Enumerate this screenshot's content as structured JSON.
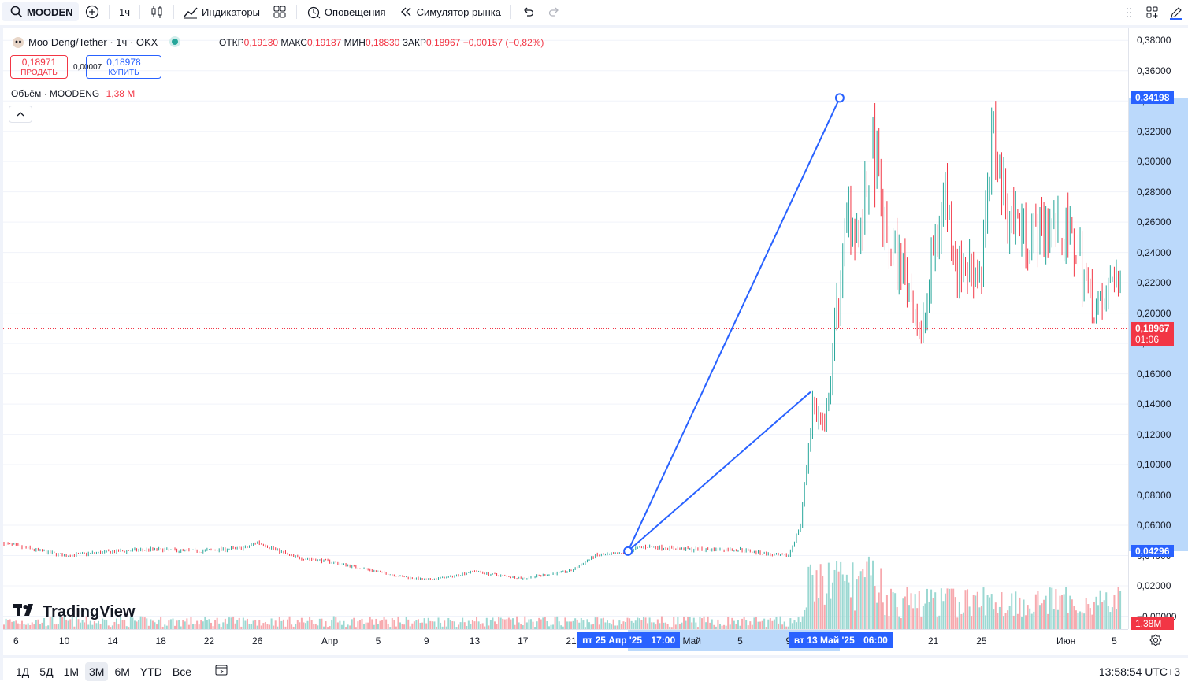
{
  "toolbar": {
    "symbol": "MOODEN",
    "interval": "1ч",
    "indicators_label": "Индикаторы",
    "alerts_label": "Оповещения",
    "replay_label": "Симулятор рынка"
  },
  "legend": {
    "title": "Moo Deng/Tether · 1ч · OKX",
    "ohlc": {
      "open_label": "ОТКР",
      "open": "0,19130",
      "high_label": "МАКС",
      "high": "0,19187",
      "low_label": "МИН",
      "low": "0,18830",
      "close_label": "ЗАКР",
      "close": "0,18967",
      "change": "−0,00157 (−0,82%)"
    },
    "sell_price": "0,18971",
    "sell_label": "ПРОДАТЬ",
    "spread": "0,00007",
    "buy_price": "0,18978",
    "buy_label": "КУПИТЬ",
    "volume_label": "Объём · MOODENG",
    "volume_value": "1,38 M",
    "collapse_icon": "chevron-up-icon"
  },
  "brand": "TradingView",
  "price_axis": [
    "0,38000",
    "0,36000",
    "0,34000",
    "0,32000",
    "0,30000",
    "0,28000",
    "0,26000",
    "0,24000",
    "0,22000",
    "0,20000",
    "0,18000",
    "0,16000",
    "0,14000",
    "0,12000",
    "0,10000",
    "0,08000",
    "0,06000",
    "0,04000",
    "0,02000",
    "−0,00000"
  ],
  "price_tags": {
    "high": "0,34198",
    "current": "0,18967",
    "countdown": "01:06",
    "low": "0,04296",
    "volume": "1,38M"
  },
  "time_axis": [
    "6",
    "10",
    "14",
    "18",
    "22",
    "26",
    "Апр",
    "5",
    "9",
    "13",
    "17",
    "21",
    "Май",
    "5",
    "9",
    "21",
    "25",
    "Июн",
    "5"
  ],
  "time_tags": {
    "start_date": "пт 25 Апр '25",
    "start_time": "17:00",
    "end_date": "вт 13 Май '25",
    "end_time": "06:00"
  },
  "ranges": [
    "1Д",
    "5Д",
    "1М",
    "3М",
    "6М",
    "YTD",
    "Все"
  ],
  "active_range": "3М",
  "clock": "13:58:54 UTC+3",
  "colors": {
    "up": "#26a69a",
    "down": "#f23645",
    "drawing": "#2962ff",
    "highlight": "#bbd9fb"
  },
  "chart_data": {
    "type": "candlestick",
    "symbol": "Moo Deng/Tether",
    "interval": "1h",
    "x_range": [
      "2025-03-05",
      "2025-06-05"
    ],
    "ylim": [
      0,
      0.38
    ],
    "y_tick_labels": [
      "0,38000",
      "0,36000",
      "0,34000",
      "0,32000",
      "0,30000",
      "0,28000",
      "0,26000",
      "0,24000",
      "0,22000",
      "0,20000",
      "0,18000",
      "0,16000",
      "0,14000",
      "0,12000",
      "0,10000",
      "0,08000",
      "0,06000",
      "0,04000",
      "0,02000",
      "−0,00000"
    ],
    "x_tick_labels": [
      "6",
      "10",
      "14",
      "18",
      "22",
      "26",
      "Апр",
      "5",
      "9",
      "13",
      "17",
      "21",
      "Май",
      "5",
      "9",
      "21",
      "25",
      "Июн",
      "5"
    ],
    "price_path": [
      [
        "2025-03-05",
        0.048
      ],
      [
        "2025-03-08",
        0.043
      ],
      [
        "2025-03-10",
        0.04
      ],
      [
        "2025-03-13",
        0.042
      ],
      [
        "2025-03-17",
        0.044
      ],
      [
        "2025-03-21",
        0.043
      ],
      [
        "2025-03-25",
        0.045
      ],
      [
        "2025-03-26",
        0.049
      ],
      [
        "2025-03-29",
        0.039
      ],
      [
        "2025-04-01",
        0.036
      ],
      [
        "2025-04-04",
        0.031
      ],
      [
        "2025-04-07",
        0.026
      ],
      [
        "2025-04-09",
        0.024
      ],
      [
        "2025-04-11",
        0.026
      ],
      [
        "2025-04-13",
        0.03
      ],
      [
        "2025-04-14",
        0.028
      ],
      [
        "2025-04-17",
        0.025
      ],
      [
        "2025-04-21",
        0.03
      ],
      [
        "2025-04-23",
        0.04
      ],
      [
        "2025-04-25",
        0.041
      ],
      [
        "2025-04-27",
        0.046
      ],
      [
        "2025-05-01",
        0.044
      ],
      [
        "2025-05-05",
        0.044
      ],
      [
        "2025-05-08",
        0.04
      ],
      [
        "2025-05-09",
        0.04
      ],
      [
        "2025-05-10",
        0.06
      ],
      [
        "2025-05-11",
        0.14
      ],
      [
        "2025-05-12",
        0.12
      ],
      [
        "2025-05-13",
        0.2
      ],
      [
        "2025-05-14",
        0.27
      ],
      [
        "2025-05-15",
        0.25
      ],
      [
        "2025-05-16",
        0.31
      ],
      [
        "2025-05-17",
        0.25
      ],
      [
        "2025-05-19",
        0.22
      ],
      [
        "2025-05-20",
        0.18
      ],
      [
        "2025-05-21",
        0.24
      ],
      [
        "2025-05-22",
        0.28
      ],
      [
        "2025-05-23",
        0.23
      ],
      [
        "2025-05-25",
        0.23
      ],
      [
        "2025-05-26",
        0.32
      ],
      [
        "2025-05-27",
        0.27
      ],
      [
        "2025-05-29",
        0.25
      ],
      [
        "2025-05-31",
        0.26
      ],
      [
        "2025-06-02",
        0.24
      ],
      [
        "2025-06-03",
        0.21
      ],
      [
        "2025-06-04",
        0.2
      ],
      [
        "2025-06-05",
        0.23
      ],
      [
        "2025-06-06",
        0.19
      ]
    ],
    "last_price": 0.18967,
    "drawing": {
      "type": "price-range",
      "start": {
        "time": "2025-04-25 17:00",
        "price": 0.04296
      },
      "end": {
        "time": "2025-05-13 06:00",
        "price": 0.34198
      }
    },
    "volume_last": "1,38M"
  }
}
